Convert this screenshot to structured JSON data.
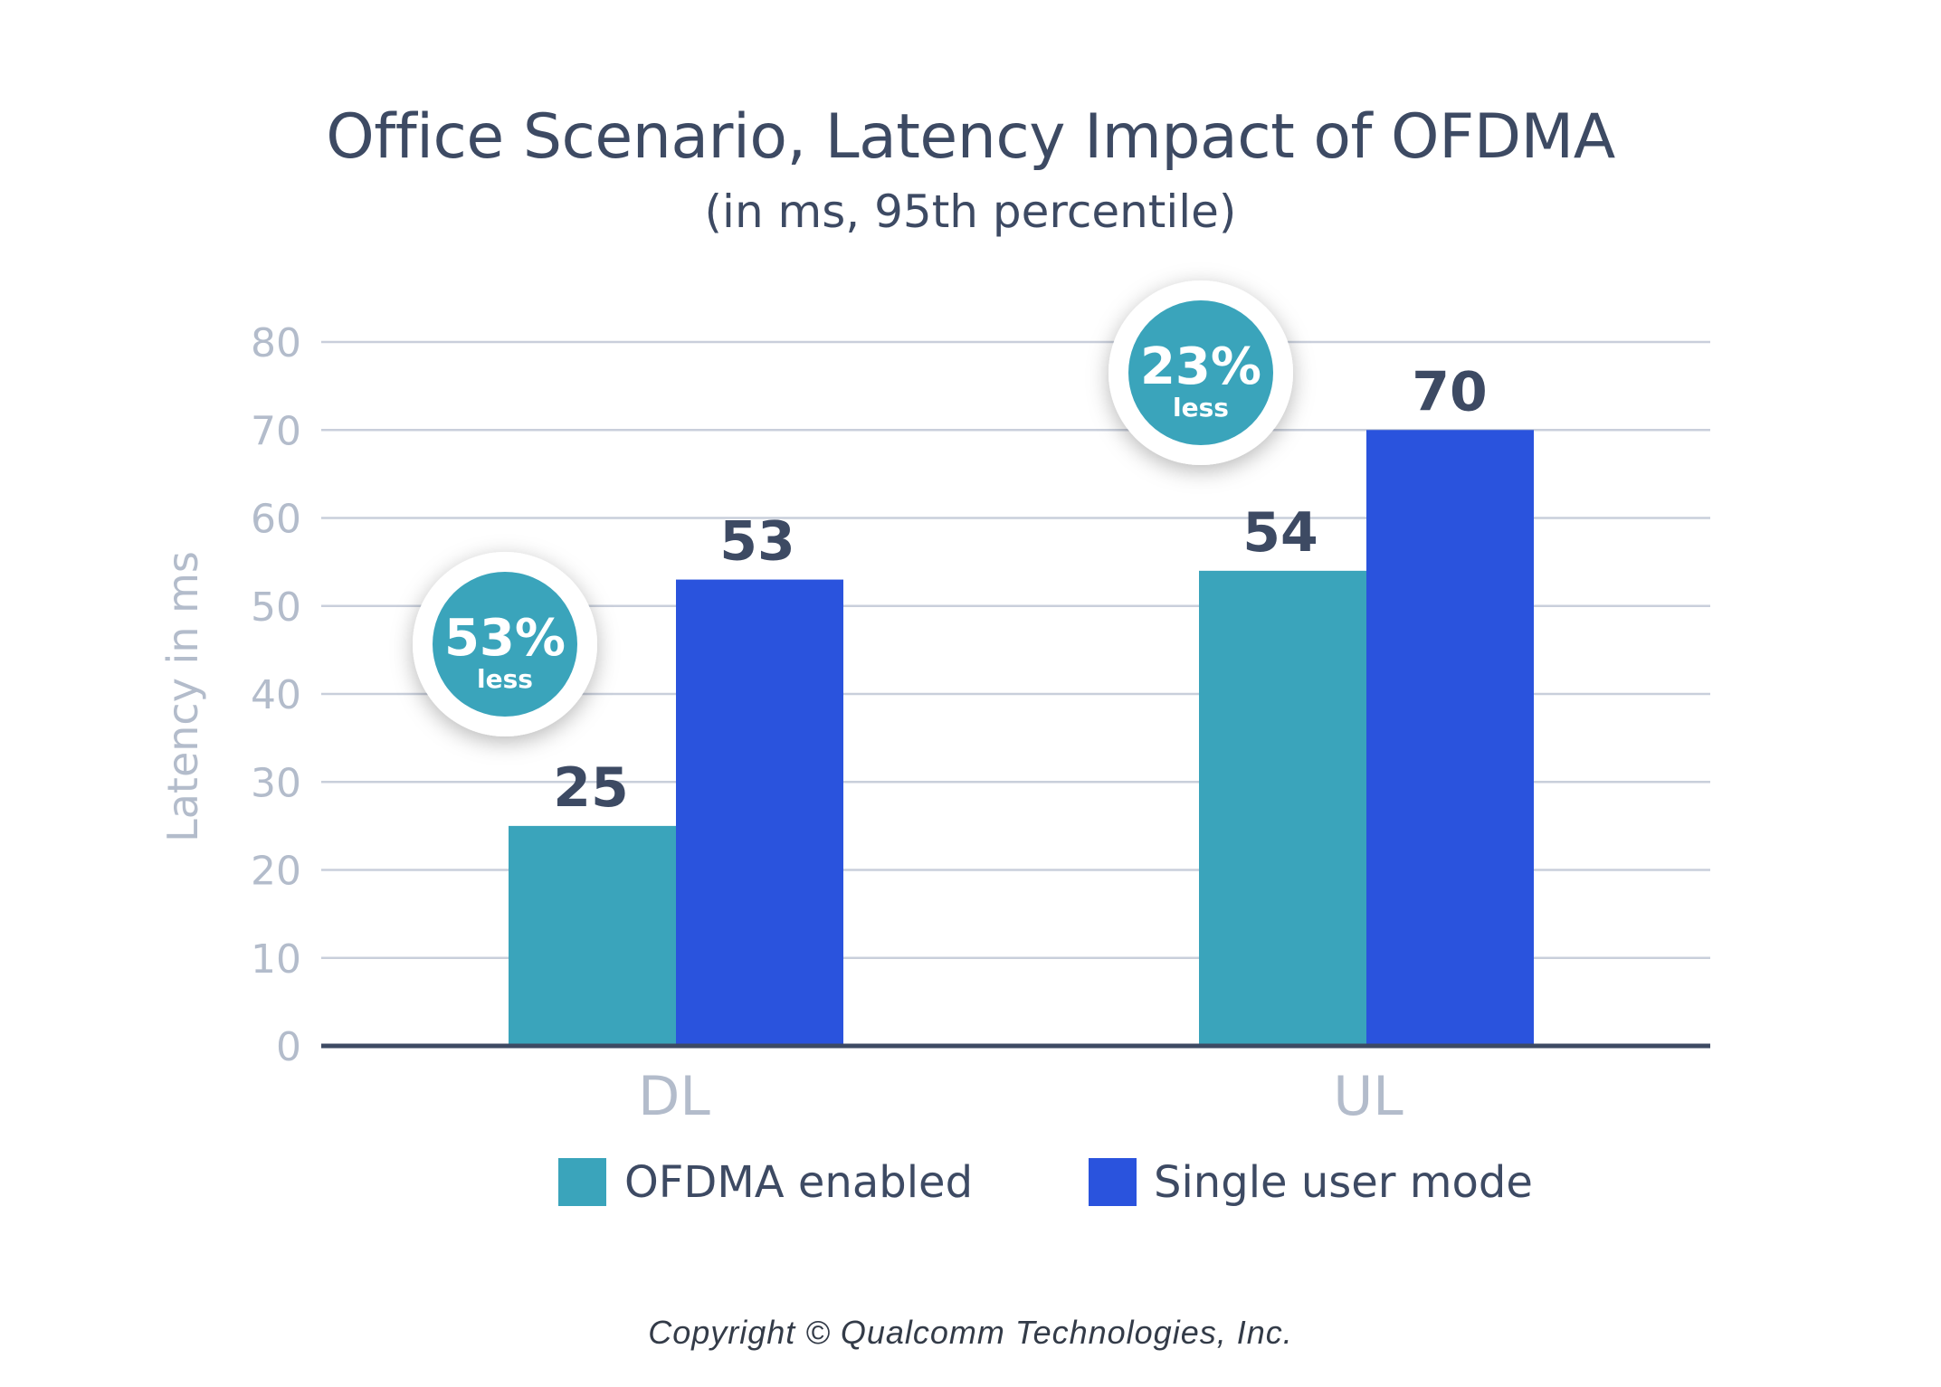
{
  "chart_data": {
    "type": "bar",
    "title": "Office Scenario, Latency Impact of OFDMA",
    "subtitle": "(in ms, 95th percentile)",
    "ylabel": "Latency in ms",
    "xlabel": "",
    "categories": [
      "DL",
      "UL"
    ],
    "series": [
      {
        "name": "OFDMA enabled",
        "values": [
          25,
          54
        ],
        "color": "#3aa4bb"
      },
      {
        "name": "Single user mode",
        "values": [
          53,
          70
        ],
        "color": "#2a53dd"
      }
    ],
    "ylim": [
      0,
      80
    ],
    "yticks": [
      0,
      10,
      20,
      30,
      40,
      50,
      60,
      70,
      80
    ],
    "data_labels": [
      "25",
      "53",
      "54",
      "70"
    ],
    "grid": true,
    "legend": "bottom-center",
    "annotations": [
      {
        "category": "DL",
        "value": "53%",
        "text": "less"
      },
      {
        "category": "UL",
        "value": "23%",
        "text": "less"
      }
    ],
    "colors": {
      "axis": "#3d4a63",
      "grid": "#c9cfdb",
      "tick_label": "#b3bccb",
      "data_label": "#3d4a63",
      "badge": "#3aa4bb"
    }
  },
  "copyright": "Copyright © Qualcomm Technologies, Inc."
}
